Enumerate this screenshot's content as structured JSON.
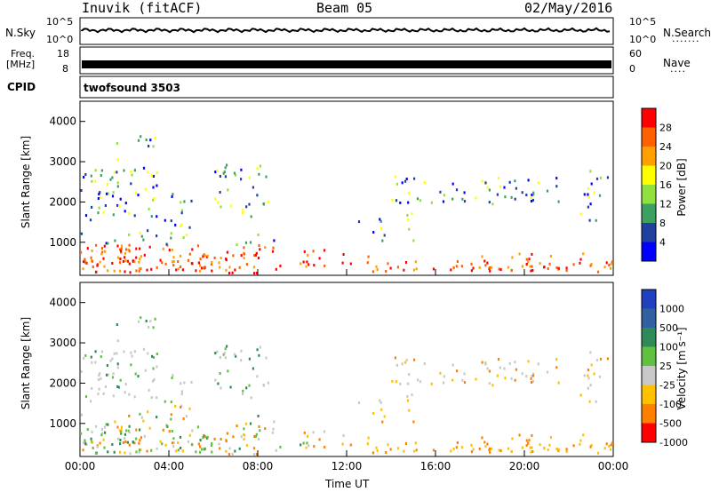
{
  "header": {
    "station": "Inuvik (fitACF)",
    "beam": "Beam 05",
    "date": "02/May/2016"
  },
  "top_panels": {
    "nsky_label": "N.Sky",
    "nsky_ticks": [
      "10^5",
      "10^0"
    ],
    "nsearch_label": "N.Search",
    "nsearch_ticks": [
      "10^5",
      "10^0"
    ],
    "freq_label_1": "Freq.",
    "freq_label_2": "[MHz]",
    "freq_ticks": [
      "18",
      "8"
    ],
    "nave_label": "Nave",
    "nave_ticks": [
      "60",
      "0"
    ],
    "cpid_label": "CPID",
    "cpid_value": "twofsound 3503"
  },
  "chart_data": [
    {
      "type": "heatmap",
      "name": "power",
      "ylabel": "Slant Range [km]",
      "xlabel": "",
      "yticks": [
        "4000",
        "3000",
        "2000",
        "1000"
      ],
      "xticks": [
        "",
        "",
        "",
        "",
        "",
        "",
        ""
      ],
      "colorbar_label": "Power [dB]",
      "colorbar_ticks": [
        "28",
        "24",
        "20",
        "16",
        "12",
        "8",
        "4"
      ],
      "colors": [
        "#ff0000",
        "#ff6000",
        "#ffa000",
        "#ffff00",
        "#90e040",
        "#3ca060",
        "#2040a0",
        "#0000ff"
      ]
    },
    {
      "type": "heatmap",
      "name": "velocity",
      "ylabel": "Slant Range [km]",
      "xlabel": "Time UT",
      "yticks": [
        "4000",
        "3000",
        "2000",
        "1000"
      ],
      "xticks": [
        "00:00",
        "04:00",
        "08:00",
        "12:00",
        "16:00",
        "20:00",
        "00:00"
      ],
      "colorbar_label": "Velocity [m s⁻¹]",
      "colorbar_ticks": [
        "1000",
        "500",
        "100",
        "25",
        "-25",
        "-100",
        "-500",
        "-1000"
      ],
      "colors": [
        "#2040c0",
        "#3060a0",
        "#2e8b57",
        "#60c040",
        "#c8c8c8",
        "#ffc000",
        "#ff8000",
        "#ff0000"
      ]
    }
  ]
}
